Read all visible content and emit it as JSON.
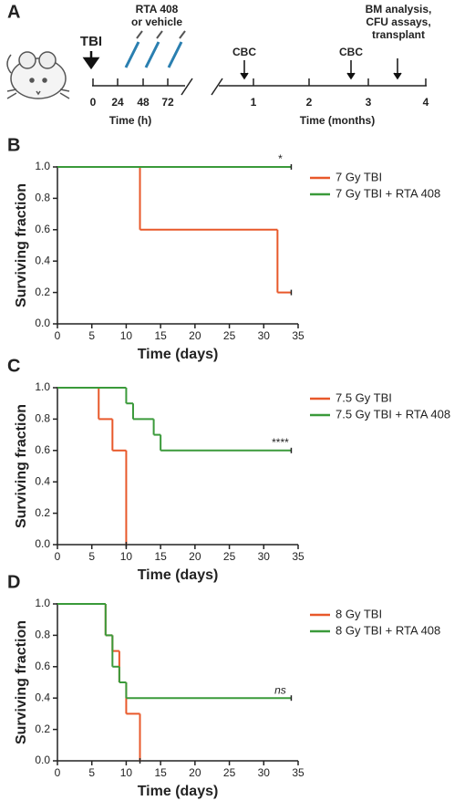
{
  "panel_a": {
    "label": "A",
    "tbi": "TBI",
    "treatment": [
      "RTA 408",
      "or vehicle"
    ],
    "hour_ticks": [
      "0",
      "24",
      "48",
      "72"
    ],
    "hour_axis_title": "Time (h)",
    "events": [
      "CBC",
      "CBC"
    ],
    "endpoint": [
      "BM analysis,",
      "CFU assays,",
      "transplant"
    ],
    "month_ticks": [
      "1",
      "2",
      "3",
      "4"
    ],
    "month_axis_title": "Time (months)"
  },
  "chart_data": [
    {
      "type": "step",
      "panel_label": "B",
      "xlabel": "Time (days)",
      "ylabel": "Surviving fraction",
      "annotation": "*",
      "xlim": [
        0,
        35
      ],
      "ylim": [
        0,
        1
      ],
      "xticks": [
        0,
        5,
        10,
        15,
        20,
        25,
        30,
        35
      ],
      "yticks": [
        {
          "value": 0,
          "label": "0.0"
        },
        {
          "value": 0.2,
          "label": "0.2"
        },
        {
          "value": 0.4,
          "label": "0.4"
        },
        {
          "value": 0.6,
          "label": "0.6"
        },
        {
          "value": 0.8,
          "label": "0.8"
        },
        {
          "value": 1,
          "label": "1.0"
        }
      ],
      "series": [
        {
          "name": "7 Gy TBI",
          "color": "#e8582a",
          "x": [
            0,
            12,
            32,
            34
          ],
          "values": [
            1,
            0.6,
            0.2,
            0.2
          ]
        },
        {
          "name": "7 Gy TBI + RTA 408",
          "color": "#3a9a3a",
          "x": [
            0,
            34
          ],
          "values": [
            1,
            1
          ]
        }
      ]
    },
    {
      "type": "step",
      "panel_label": "C",
      "xlabel": "Time (days)",
      "ylabel": "Surviving fraction",
      "annotation": "****",
      "xlim": [
        0,
        35
      ],
      "ylim": [
        0,
        1
      ],
      "xticks": [
        0,
        5,
        10,
        15,
        20,
        25,
        30,
        35
      ],
      "yticks": [
        {
          "value": 0,
          "label": "0.0"
        },
        {
          "value": 0.2,
          "label": "0.2"
        },
        {
          "value": 0.4,
          "label": "0.4"
        },
        {
          "value": 0.6,
          "label": "0.6"
        },
        {
          "value": 0.8,
          "label": "0.8"
        },
        {
          "value": 1,
          "label": "1.0"
        }
      ],
      "series": [
        {
          "name": "7.5 Gy TBI",
          "color": "#e8582a",
          "x": [
            0,
            6,
            8,
            10
          ],
          "values": [
            1,
            0.8,
            0.6,
            0
          ]
        },
        {
          "name": "7.5 Gy TBI + RTA 408",
          "color": "#3a9a3a",
          "x": [
            0,
            10,
            11,
            14,
            15,
            34
          ],
          "values": [
            1,
            0.9,
            0.8,
            0.7,
            0.6,
            0.6
          ]
        }
      ]
    },
    {
      "type": "step",
      "panel_label": "D",
      "xlabel": "Time (days)",
      "ylabel": "Surviving fraction",
      "annotation": "ns",
      "xlim": [
        0,
        35
      ],
      "ylim": [
        0,
        1
      ],
      "xticks": [
        0,
        5,
        10,
        15,
        20,
        25,
        30,
        35
      ],
      "yticks": [
        {
          "value": 0,
          "label": "0.0"
        },
        {
          "value": 0.2,
          "label": "0.2"
        },
        {
          "value": 0.4,
          "label": "0.4"
        },
        {
          "value": 0.6,
          "label": "0.6"
        },
        {
          "value": 0.8,
          "label": "0.8"
        },
        {
          "value": 1,
          "label": "1.0"
        }
      ],
      "series": [
        {
          "name": "8 Gy TBI",
          "color": "#e8582a",
          "x": [
            0,
            7,
            8,
            9,
            10,
            12
          ],
          "values": [
            1,
            0.8,
            0.7,
            0.5,
            0.3,
            0
          ]
        },
        {
          "name": "8 Gy TBI + RTA 408",
          "color": "#3a9a3a",
          "x": [
            0,
            7,
            8,
            9,
            10,
            34
          ],
          "values": [
            1,
            0.8,
            0.6,
            0.5,
            0.4,
            0.4
          ]
        }
      ]
    }
  ]
}
